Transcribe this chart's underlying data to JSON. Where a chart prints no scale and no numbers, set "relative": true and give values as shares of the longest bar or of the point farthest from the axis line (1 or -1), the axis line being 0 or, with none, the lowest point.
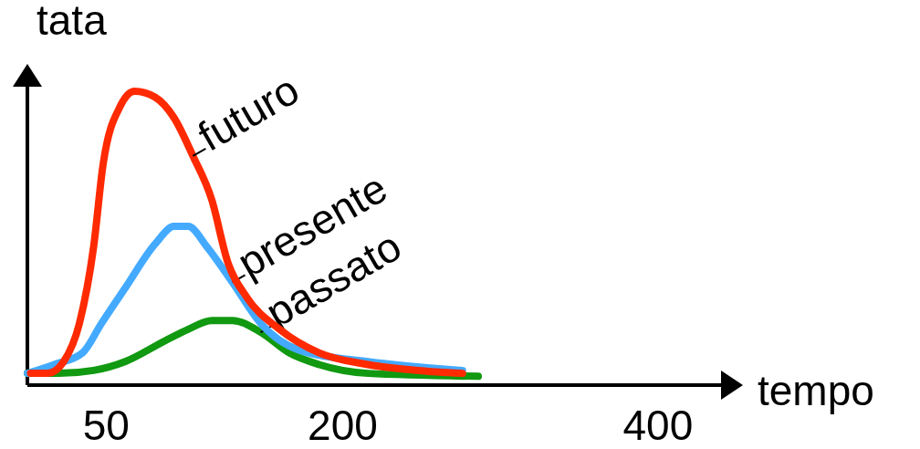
{
  "chart_data": {
    "type": "line",
    "xlabel": "tempo",
    "ylabel": "tata",
    "relative": true,
    "xlim": [
      0,
      440
    ],
    "xticks": [
      50,
      200,
      400
    ],
    "series": [
      {
        "name": "futuro",
        "color": "#ff2a00",
        "x": [
          2,
          13,
          23,
          33,
          42,
          48,
          59,
          68,
          81,
          93,
          105,
          117,
          127,
          139,
          160,
          185,
          216,
          248,
          276
        ],
        "values": [
          0.04,
          0.04,
          0.08,
          0.21,
          0.47,
          0.75,
          0.95,
          1,
          0.98,
          0.91,
          0.78,
          0.63,
          0.42,
          0.3,
          0.19,
          0.11,
          0.07,
          0.05,
          0.04
        ]
      },
      {
        "name": "presente",
        "color": "#44aaff",
        "x": [
          0,
          17,
          35,
          47,
          62,
          81,
          93,
          102,
          114,
          130,
          148,
          172,
          216,
          276
        ],
        "values": [
          0.04,
          0.07,
          0.11,
          0.21,
          0.33,
          0.48,
          0.54,
          0.54,
          0.47,
          0.35,
          0.21,
          0.12,
          0.08,
          0.05
        ]
      },
      {
        "name": "passato",
        "color": "#119911",
        "x": [
          0,
          20,
          42,
          62,
          87,
          102,
          117,
          130,
          148,
          166,
          185,
          216,
          286
        ],
        "values": [
          0.04,
          0.04,
          0.05,
          0.08,
          0.15,
          0.19,
          0.22,
          0.22,
          0.18,
          0.11,
          0.07,
          0.04,
          0.03
        ]
      }
    ]
  }
}
